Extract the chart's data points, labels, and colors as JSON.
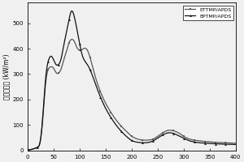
{
  "title": "",
  "xlabel": "",
  "ylabel": "熱释放速率 (kW/m²)",
  "xlim": [
    0,
    400
  ],
  "ylim": [
    0,
    580
  ],
  "yticks": [
    0,
    100,
    200,
    300,
    400,
    500
  ],
  "xticks": [
    0,
    50,
    100,
    150,
    200,
    250,
    300,
    350,
    400
  ],
  "legend": [
    "ETTMP/APDS",
    "EPTMP/APDS"
  ],
  "line1_color": "#555555",
  "line2_color": "#111111",
  "background_color": "#f0f0f0",
  "ettmp_keypoints": [
    [
      0,
      0
    ],
    [
      10,
      5
    ],
    [
      20,
      10
    ],
    [
      25,
      15
    ],
    [
      30,
      120
    ],
    [
      35,
      290
    ],
    [
      40,
      325
    ],
    [
      45,
      330
    ],
    [
      50,
      330
    ],
    [
      55,
      300
    ],
    [
      60,
      300
    ],
    [
      65,
      315
    ],
    [
      70,
      360
    ],
    [
      75,
      385
    ],
    [
      80,
      430
    ],
    [
      85,
      440
    ],
    [
      90,
      435
    ],
    [
      95,
      400
    ],
    [
      100,
      390
    ],
    [
      105,
      395
    ],
    [
      110,
      405
    ],
    [
      115,
      400
    ],
    [
      120,
      370
    ],
    [
      125,
      330
    ],
    [
      130,
      290
    ],
    [
      140,
      230
    ],
    [
      150,
      185
    ],
    [
      160,
      150
    ],
    [
      170,
      120
    ],
    [
      180,
      95
    ],
    [
      190,
      75
    ],
    [
      200,
      55
    ],
    [
      210,
      45
    ],
    [
      220,
      40
    ],
    [
      230,
      40
    ],
    [
      240,
      42
    ],
    [
      250,
      55
    ],
    [
      260,
      70
    ],
    [
      270,
      80
    ],
    [
      280,
      78
    ],
    [
      290,
      70
    ],
    [
      300,
      55
    ],
    [
      310,
      45
    ],
    [
      320,
      40
    ],
    [
      330,
      38
    ],
    [
      340,
      35
    ],
    [
      360,
      32
    ],
    [
      380,
      30
    ],
    [
      400,
      28
    ]
  ],
  "eptmp_keypoints": [
    [
      0,
      0
    ],
    [
      10,
      5
    ],
    [
      20,
      12
    ],
    [
      25,
      15
    ],
    [
      30,
      130
    ],
    [
      35,
      310
    ],
    [
      40,
      355
    ],
    [
      45,
      380
    ],
    [
      50,
      360
    ],
    [
      55,
      330
    ],
    [
      60,
      335
    ],
    [
      65,
      350
    ],
    [
      70,
      420
    ],
    [
      75,
      460
    ],
    [
      80,
      510
    ],
    [
      83,
      555
    ],
    [
      86,
      560
    ],
    [
      90,
      530
    ],
    [
      95,
      480
    ],
    [
      100,
      420
    ],
    [
      105,
      370
    ],
    [
      110,
      350
    ],
    [
      115,
      340
    ],
    [
      120,
      320
    ],
    [
      125,
      295
    ],
    [
      130,
      265
    ],
    [
      140,
      210
    ],
    [
      150,
      165
    ],
    [
      160,
      130
    ],
    [
      170,
      100
    ],
    [
      180,
      75
    ],
    [
      190,
      55
    ],
    [
      200,
      38
    ],
    [
      210,
      32
    ],
    [
      220,
      30
    ],
    [
      230,
      30
    ],
    [
      240,
      35
    ],
    [
      250,
      48
    ],
    [
      260,
      62
    ],
    [
      270,
      70
    ],
    [
      280,
      68
    ],
    [
      290,
      58
    ],
    [
      300,
      48
    ],
    [
      310,
      38
    ],
    [
      320,
      33
    ],
    [
      330,
      30
    ],
    [
      350,
      27
    ],
    [
      370,
      25
    ],
    [
      400,
      23
    ]
  ]
}
